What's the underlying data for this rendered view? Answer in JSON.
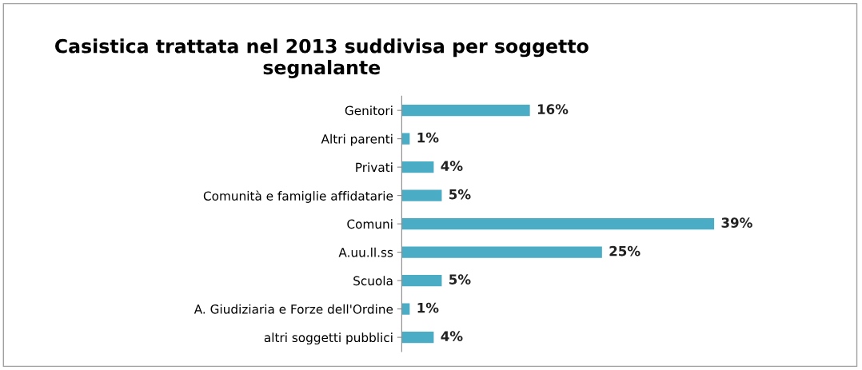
{
  "chart_data": {
    "type": "bar",
    "orientation": "horizontal",
    "title": "Casistica trattata nel 2013 suddivisa per soggetto\nsegnalante",
    "categories": [
      "Genitori",
      "Altri parenti",
      "Privati",
      "Comunità e famiglie affidatarie",
      "Comuni",
      "A.uu.ll.ss",
      "Scuola",
      "A. Giudiziaria e Forze dell'Ordine",
      "altri soggetti pubblici"
    ],
    "values": [
      16,
      1,
      4,
      5,
      39,
      25,
      5,
      1,
      4
    ],
    "value_labels": [
      "16%",
      "1%",
      "4%",
      "5%",
      "39%",
      "25%",
      "5%",
      "1%",
      "4%"
    ],
    "color": "#4bacc6",
    "tick_labels": "y"
  }
}
